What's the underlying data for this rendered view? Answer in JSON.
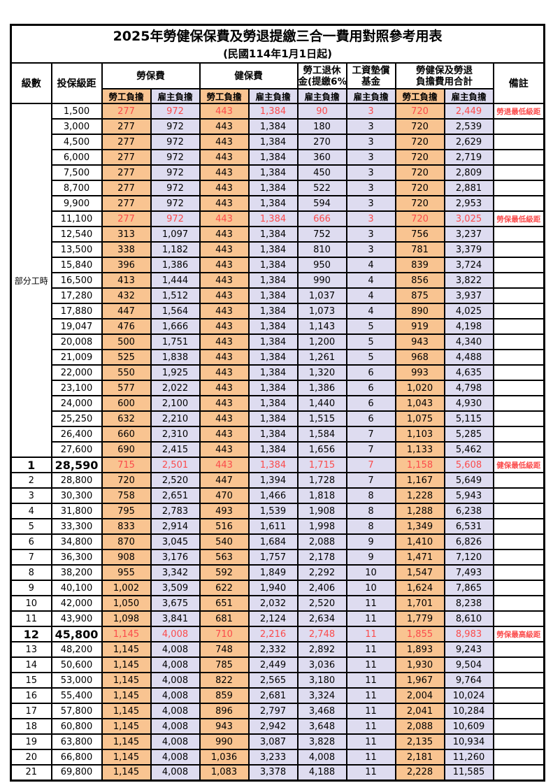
{
  "title": "2025年勞健保保費及勞退提繳三合一費用對照參考用表",
  "subtitle": "(民國114年1月1日起)",
  "colors": {
    "employee_bg": "#f9c491",
    "employer_bg": "#dedcf0",
    "highlight_red": "#fb4b4b"
  },
  "header": {
    "level": "級數",
    "bracket": "投保級距",
    "labor_fee": "勞保費",
    "health_fee": "健保費",
    "pension_line1": "勞工退休",
    "pension_line2": "金(提繳6%)",
    "wage_fund_line1": "工資墊償",
    "wage_fund_line2": "基金",
    "total_line1": "勞健保及勞退",
    "total_line2": "負擔費用合計",
    "remark": "備註",
    "employee_burden": "勞工負擔",
    "employer_burden": "雇主負擔"
  },
  "part_time_label": "部分工時",
  "rows": [
    {
      "level": "",
      "bracket": "1,500",
      "values": [
        "277",
        "972",
        "443",
        "1,384",
        "90",
        "3",
        "720",
        "2,449"
      ],
      "remark": "勞退最低級距",
      "red": true,
      "big": false
    },
    {
      "level": "",
      "bracket": "3,000",
      "values": [
        "277",
        "972",
        "443",
        "1,384",
        "180",
        "3",
        "720",
        "2,539"
      ],
      "remark": "",
      "red": false,
      "big": false
    },
    {
      "level": "",
      "bracket": "4,500",
      "values": [
        "277",
        "972",
        "443",
        "1,384",
        "270",
        "3",
        "720",
        "2,629"
      ],
      "remark": "",
      "red": false,
      "big": false
    },
    {
      "level": "",
      "bracket": "6,000",
      "values": [
        "277",
        "972",
        "443",
        "1,384",
        "360",
        "3",
        "720",
        "2,719"
      ],
      "remark": "",
      "red": false,
      "big": false
    },
    {
      "level": "",
      "bracket": "7,500",
      "values": [
        "277",
        "972",
        "443",
        "1,384",
        "450",
        "3",
        "720",
        "2,809"
      ],
      "remark": "",
      "red": false,
      "big": false
    },
    {
      "level": "",
      "bracket": "8,700",
      "values": [
        "277",
        "972",
        "443",
        "1,384",
        "522",
        "3",
        "720",
        "2,881"
      ],
      "remark": "",
      "red": false,
      "big": false
    },
    {
      "level": "",
      "bracket": "9,900",
      "values": [
        "277",
        "972",
        "443",
        "1,384",
        "594",
        "3",
        "720",
        "2,953"
      ],
      "remark": "",
      "red": false,
      "big": false
    },
    {
      "level": "",
      "bracket": "11,100",
      "values": [
        "277",
        "972",
        "443",
        "1,384",
        "666",
        "3",
        "720",
        "3,025"
      ],
      "remark": "勞保最低級距",
      "red": true,
      "big": false
    },
    {
      "level": "",
      "bracket": "12,540",
      "values": [
        "313",
        "1,097",
        "443",
        "1,384",
        "752",
        "3",
        "756",
        "3,237"
      ],
      "remark": "",
      "red": false,
      "big": false
    },
    {
      "level": "",
      "bracket": "13,500",
      "values": [
        "338",
        "1,182",
        "443",
        "1,384",
        "810",
        "3",
        "781",
        "3,379"
      ],
      "remark": "",
      "red": false,
      "big": false
    },
    {
      "level": "",
      "bracket": "15,840",
      "values": [
        "396",
        "1,386",
        "443",
        "1,384",
        "950",
        "4",
        "839",
        "3,724"
      ],
      "remark": "",
      "red": false,
      "big": false
    },
    {
      "level": "",
      "bracket": "16,500",
      "values": [
        "413",
        "1,444",
        "443",
        "1,384",
        "990",
        "4",
        "856",
        "3,822"
      ],
      "remark": "",
      "red": false,
      "big": false
    },
    {
      "level": "",
      "bracket": "17,280",
      "values": [
        "432",
        "1,512",
        "443",
        "1,384",
        "1,037",
        "4",
        "875",
        "3,937"
      ],
      "remark": "",
      "red": false,
      "big": false
    },
    {
      "level": "",
      "bracket": "17,880",
      "values": [
        "447",
        "1,564",
        "443",
        "1,384",
        "1,073",
        "4",
        "890",
        "4,025"
      ],
      "remark": "",
      "red": false,
      "big": false
    },
    {
      "level": "",
      "bracket": "19,047",
      "values": [
        "476",
        "1,666",
        "443",
        "1,384",
        "1,143",
        "5",
        "919",
        "4,198"
      ],
      "remark": "",
      "red": false,
      "big": false
    },
    {
      "level": "",
      "bracket": "20,008",
      "values": [
        "500",
        "1,751",
        "443",
        "1,384",
        "1,200",
        "5",
        "943",
        "4,340"
      ],
      "remark": "",
      "red": false,
      "big": false
    },
    {
      "level": "",
      "bracket": "21,009",
      "values": [
        "525",
        "1,838",
        "443",
        "1,384",
        "1,261",
        "5",
        "968",
        "4,488"
      ],
      "remark": "",
      "red": false,
      "big": false
    },
    {
      "level": "",
      "bracket": "22,000",
      "values": [
        "550",
        "1,925",
        "443",
        "1,384",
        "1,320",
        "6",
        "993",
        "4,635"
      ],
      "remark": "",
      "red": false,
      "big": false
    },
    {
      "level": "",
      "bracket": "23,100",
      "values": [
        "577",
        "2,022",
        "443",
        "1,384",
        "1,386",
        "6",
        "1,020",
        "4,798"
      ],
      "remark": "",
      "red": false,
      "big": false
    },
    {
      "level": "",
      "bracket": "24,000",
      "values": [
        "600",
        "2,100",
        "443",
        "1,384",
        "1,440",
        "6",
        "1,043",
        "4,930"
      ],
      "remark": "",
      "red": false,
      "big": false
    },
    {
      "level": "",
      "bracket": "25,250",
      "values": [
        "632",
        "2,210",
        "443",
        "1,384",
        "1,515",
        "6",
        "1,075",
        "5,115"
      ],
      "remark": "",
      "red": false,
      "big": false
    },
    {
      "level": "",
      "bracket": "26,400",
      "values": [
        "660",
        "2,310",
        "443",
        "1,384",
        "1,584",
        "7",
        "1,103",
        "5,285"
      ],
      "remark": "",
      "red": false,
      "big": false
    },
    {
      "level": "",
      "bracket": "27,600",
      "values": [
        "690",
        "2,415",
        "443",
        "1,384",
        "1,656",
        "7",
        "1,133",
        "5,462"
      ],
      "remark": "",
      "red": false,
      "big": false
    },
    {
      "level": "1",
      "bracket": "28,590",
      "values": [
        "715",
        "2,501",
        "443",
        "1,384",
        "1,715",
        "7",
        "1,158",
        "5,608"
      ],
      "remark": "健保最低級距",
      "red": true,
      "big": true
    },
    {
      "level": "2",
      "bracket": "28,800",
      "values": [
        "720",
        "2,520",
        "447",
        "1,394",
        "1,728",
        "7",
        "1,167",
        "5,649"
      ],
      "remark": "",
      "red": false,
      "big": false
    },
    {
      "level": "3",
      "bracket": "30,300",
      "values": [
        "758",
        "2,651",
        "470",
        "1,466",
        "1,818",
        "8",
        "1,228",
        "5,943"
      ],
      "remark": "",
      "red": false,
      "big": false
    },
    {
      "level": "4",
      "bracket": "31,800",
      "values": [
        "795",
        "2,783",
        "493",
        "1,539",
        "1,908",
        "8",
        "1,288",
        "6,238"
      ],
      "remark": "",
      "red": false,
      "big": false
    },
    {
      "level": "5",
      "bracket": "33,300",
      "values": [
        "833",
        "2,914",
        "516",
        "1,611",
        "1,998",
        "8",
        "1,349",
        "6,531"
      ],
      "remark": "",
      "red": false,
      "big": false
    },
    {
      "level": "6",
      "bracket": "34,800",
      "values": [
        "870",
        "3,045",
        "540",
        "1,684",
        "2,088",
        "9",
        "1,410",
        "6,826"
      ],
      "remark": "",
      "red": false,
      "big": false
    },
    {
      "level": "7",
      "bracket": "36,300",
      "values": [
        "908",
        "3,176",
        "563",
        "1,757",
        "2,178",
        "9",
        "1,471",
        "7,120"
      ],
      "remark": "",
      "red": false,
      "big": false
    },
    {
      "level": "8",
      "bracket": "38,200",
      "values": [
        "955",
        "3,342",
        "592",
        "1,849",
        "2,292",
        "10",
        "1,547",
        "7,493"
      ],
      "remark": "",
      "red": false,
      "big": false
    },
    {
      "level": "9",
      "bracket": "40,100",
      "values": [
        "1,002",
        "3,509",
        "622",
        "1,940",
        "2,406",
        "10",
        "1,624",
        "7,865"
      ],
      "remark": "",
      "red": false,
      "big": false
    },
    {
      "level": "10",
      "bracket": "42,000",
      "values": [
        "1,050",
        "3,675",
        "651",
        "2,032",
        "2,520",
        "11",
        "1,701",
        "8,238"
      ],
      "remark": "",
      "red": false,
      "big": false
    },
    {
      "level": "11",
      "bracket": "43,900",
      "values": [
        "1,098",
        "3,841",
        "681",
        "2,124",
        "2,634",
        "11",
        "1,779",
        "8,610"
      ],
      "remark": "",
      "red": false,
      "big": false
    },
    {
      "level": "12",
      "bracket": "45,800",
      "values": [
        "1,145",
        "4,008",
        "710",
        "2,216",
        "2,748",
        "11",
        "1,855",
        "8,983"
      ],
      "remark": "勞保最高級距",
      "red": true,
      "big": true
    },
    {
      "level": "13",
      "bracket": "48,200",
      "values": [
        "1,145",
        "4,008",
        "748",
        "2,332",
        "2,892",
        "11",
        "1,893",
        "9,243"
      ],
      "remark": "",
      "red": false,
      "big": false
    },
    {
      "level": "14",
      "bracket": "50,600",
      "values": [
        "1,145",
        "4,008",
        "785",
        "2,449",
        "3,036",
        "11",
        "1,930",
        "9,504"
      ],
      "remark": "",
      "red": false,
      "big": false
    },
    {
      "level": "15",
      "bracket": "53,000",
      "values": [
        "1,145",
        "4,008",
        "822",
        "2,565",
        "3,180",
        "11",
        "1,967",
        "9,764"
      ],
      "remark": "",
      "red": false,
      "big": false
    },
    {
      "level": "16",
      "bracket": "55,400",
      "values": [
        "1,145",
        "4,008",
        "859",
        "2,681",
        "3,324",
        "11",
        "2,004",
        "10,024"
      ],
      "remark": "",
      "red": false,
      "big": false
    },
    {
      "level": "17",
      "bracket": "57,800",
      "values": [
        "1,145",
        "4,008",
        "896",
        "2,797",
        "3,468",
        "11",
        "2,041",
        "10,284"
      ],
      "remark": "",
      "red": false,
      "big": false
    },
    {
      "level": "18",
      "bracket": "60,800",
      "values": [
        "1,145",
        "4,008",
        "943",
        "2,942",
        "3,648",
        "11",
        "2,088",
        "10,609"
      ],
      "remark": "",
      "red": false,
      "big": false
    },
    {
      "level": "19",
      "bracket": "63,800",
      "values": [
        "1,145",
        "4,008",
        "990",
        "3,087",
        "3,828",
        "11",
        "2,135",
        "10,934"
      ],
      "remark": "",
      "red": false,
      "big": false
    },
    {
      "level": "20",
      "bracket": "66,800",
      "values": [
        "1,145",
        "4,008",
        "1,036",
        "3,233",
        "4,008",
        "11",
        "2,181",
        "11,260"
      ],
      "remark": "",
      "red": false,
      "big": false
    },
    {
      "level": "21",
      "bracket": "69,800",
      "values": [
        "1,145",
        "4,008",
        "1,083",
        "3,378",
        "4,188",
        "11",
        "2,228",
        "11,585"
      ],
      "remark": "",
      "red": false,
      "big": false
    }
  ]
}
